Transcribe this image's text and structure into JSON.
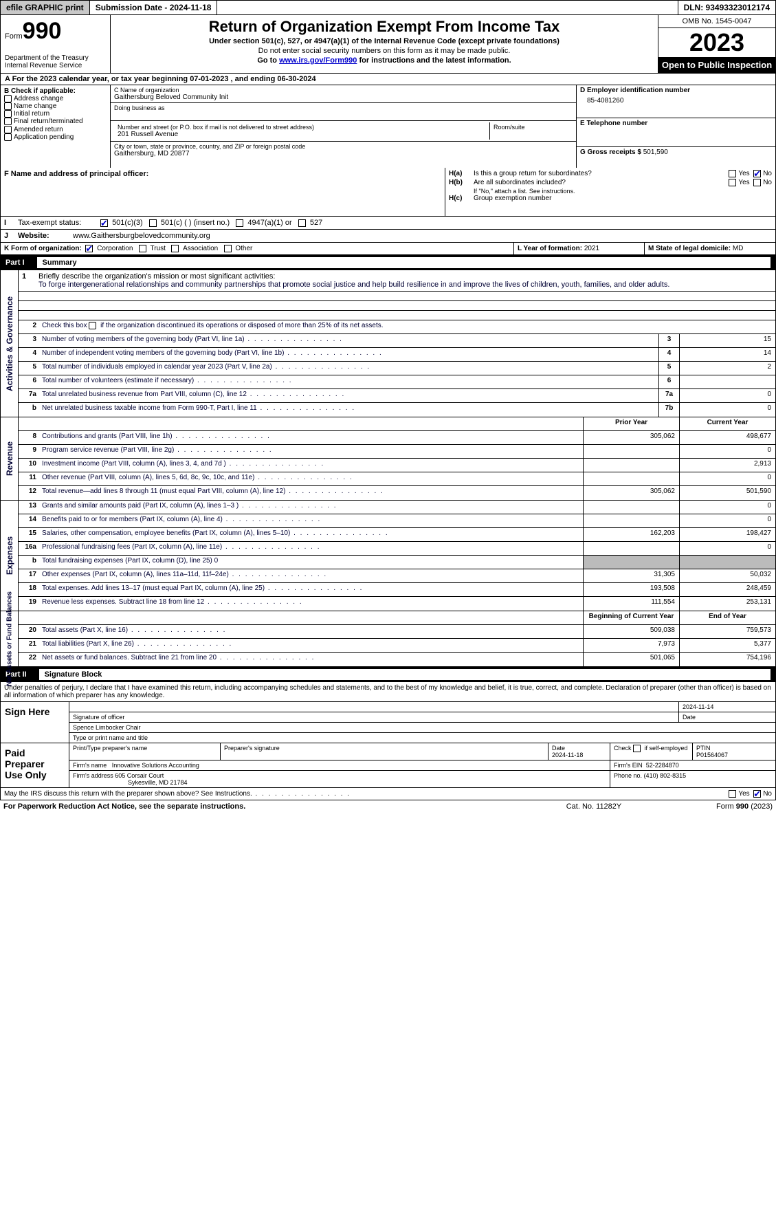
{
  "topbar": {
    "efile": "efile GRAPHIC print",
    "submission": "Submission Date - 2024-11-18",
    "dln": "DLN: 93493323012174"
  },
  "header": {
    "form_word": "Form",
    "form_num": "990",
    "dept": "Department of the Treasury",
    "irs": "Internal Revenue Service",
    "title": "Return of Organization Exempt From Income Tax",
    "sub1": "Under section 501(c), 527, or 4947(a)(1) of the Internal Revenue Code (except private foundations)",
    "sub2": "Do not enter social security numbers on this form as it may be made public.",
    "sub3_a": "Go to ",
    "sub3_link": "www.irs.gov/Form990",
    "sub3_b": " for instructions and the latest information.",
    "omb": "OMB No. 1545-0047",
    "year": "2023",
    "open": "Open to Public Inspection"
  },
  "row_a": "A For the 2023 calendar year, or tax year beginning 07-01-2023    , and ending 06-30-2024",
  "box_b": {
    "title": "B Check if applicable:",
    "items": [
      "Address change",
      "Name change",
      "Initial return",
      "Final return/terminated",
      "Amended return",
      "Application pending"
    ]
  },
  "box_c": {
    "name_lbl": "C Name of organization",
    "name": "Gaithersburg Beloved Community Init",
    "dba_lbl": "Doing business as",
    "dba": "",
    "addr_lbl": "Number and street (or P.O. box if mail is not delivered to street address)",
    "addr": "201 Russell Avenue",
    "room_lbl": "Room/suite",
    "city_lbl": "City or town, state or province, country, and ZIP or foreign postal code",
    "city": "Gaithersburg, MD  20877"
  },
  "box_d": {
    "lbl": "D Employer identification number",
    "val": "85-4081260"
  },
  "box_e": {
    "lbl": "E Telephone number",
    "val": ""
  },
  "box_g": {
    "lbl": "G Gross receipts $",
    "val": "501,590"
  },
  "box_f": {
    "lbl": "F  Name and address of principal officer:",
    "val": ""
  },
  "box_h": {
    "a": "Is this a group return for subordinates?",
    "b": "Are all subordinates included?",
    "b_note": "If \"No,\" attach a list. See instructions.",
    "c": "Group exemption number",
    "yes": "Yes",
    "no": "No"
  },
  "row_i": {
    "lbl": "Tax-exempt status:",
    "opts": [
      "501(c)(3)",
      "501(c) (   ) (insert no.)",
      "4947(a)(1) or",
      "527"
    ]
  },
  "row_j": {
    "lbl": "Website:",
    "val": "www.Gaithersburgbelovedcommunity.org"
  },
  "row_k": {
    "lbl": "K Form of organization:",
    "opts": [
      "Corporation",
      "Trust",
      "Association",
      "Other"
    ]
  },
  "row_l": {
    "lbl": "L Year of formation:",
    "val": "2021"
  },
  "row_m": {
    "lbl": "M State of legal domicile:",
    "val": "MD"
  },
  "part1": {
    "num": "Part I",
    "title": "Summary"
  },
  "mission": {
    "lbl": "Briefly describe the organization's mission or most significant activities:",
    "text": "To forge intergenerational relationships and community partnerships that promote social justice and help build resilience in and improve the lives of children, youth, families, and older adults."
  },
  "line2": "Check this box      if the organization discontinued its operations or disposed of more than 25% of its net assets.",
  "sidelabels": {
    "ag": "Activities & Governance",
    "rev": "Revenue",
    "exp": "Expenses",
    "na": "Net Assets or\nFund Balances"
  },
  "gov": [
    {
      "n": "3",
      "t": "Number of voting members of the governing body (Part VI, line 1a)",
      "b": "3",
      "v": "15"
    },
    {
      "n": "4",
      "t": "Number of independent voting members of the governing body (Part VI, line 1b)",
      "b": "4",
      "v": "14"
    },
    {
      "n": "5",
      "t": "Total number of individuals employed in calendar year 2023 (Part V, line 2a)",
      "b": "5",
      "v": "2"
    },
    {
      "n": "6",
      "t": "Total number of volunteers (estimate if necessary)",
      "b": "6",
      "v": ""
    },
    {
      "n": "7a",
      "t": "Total unrelated business revenue from Part VIII, column (C), line 12",
      "b": "7a",
      "v": "0"
    },
    {
      "n": "b",
      "t": "Net unrelated business taxable income from Form 990-T, Part I, line 11",
      "b": "7b",
      "v": "0"
    }
  ],
  "rev_hdr": {
    "prior": "Prior Year",
    "curr": "Current Year"
  },
  "rev": [
    {
      "n": "8",
      "t": "Contributions and grants (Part VIII, line 1h)",
      "p": "305,062",
      "c": "498,677"
    },
    {
      "n": "9",
      "t": "Program service revenue (Part VIII, line 2g)",
      "p": "",
      "c": "0"
    },
    {
      "n": "10",
      "t": "Investment income (Part VIII, column (A), lines 3, 4, and 7d )",
      "p": "",
      "c": "2,913"
    },
    {
      "n": "11",
      "t": "Other revenue (Part VIII, column (A), lines 5, 6d, 8c, 9c, 10c, and 11e)",
      "p": "",
      "c": "0"
    },
    {
      "n": "12",
      "t": "Total revenue—add lines 8 through 11 (must equal Part VIII, column (A), line 12)",
      "p": "305,062",
      "c": "501,590"
    }
  ],
  "exp": [
    {
      "n": "13",
      "t": "Grants and similar amounts paid (Part IX, column (A), lines 1–3 )",
      "p": "",
      "c": "0"
    },
    {
      "n": "14",
      "t": "Benefits paid to or for members (Part IX, column (A), line 4)",
      "p": "",
      "c": "0"
    },
    {
      "n": "15",
      "t": "Salaries, other compensation, employee benefits (Part IX, column (A), lines 5–10)",
      "p": "162,203",
      "c": "198,427"
    },
    {
      "n": "16a",
      "t": "Professional fundraising fees (Part IX, column (A), line 11e)",
      "p": "",
      "c": "0"
    },
    {
      "n": "b",
      "t": "Total fundraising expenses (Part IX, column (D), line 25) 0",
      "grey": true
    },
    {
      "n": "17",
      "t": "Other expenses (Part IX, column (A), lines 11a–11d, 11f–24e)",
      "p": "31,305",
      "c": "50,032"
    },
    {
      "n": "18",
      "t": "Total expenses. Add lines 13–17 (must equal Part IX, column (A), line 25)",
      "p": "193,508",
      "c": "248,459"
    },
    {
      "n": "19",
      "t": "Revenue less expenses. Subtract line 18 from line 12",
      "p": "111,554",
      "c": "253,131"
    }
  ],
  "na_hdr": {
    "beg": "Beginning of Current Year",
    "end": "End of Year"
  },
  "na": [
    {
      "n": "20",
      "t": "Total assets (Part X, line 16)",
      "p": "509,038",
      "c": "759,573"
    },
    {
      "n": "21",
      "t": "Total liabilities (Part X, line 26)",
      "p": "7,973",
      "c": "5,377"
    },
    {
      "n": "22",
      "t": "Net assets or fund balances. Subtract line 21 from line 20",
      "p": "501,065",
      "c": "754,196"
    }
  ],
  "part2": {
    "num": "Part II",
    "title": "Signature Block"
  },
  "sig_intro": "Under penalties of perjury, I declare that I have examined this return, including accompanying schedules and statements, and to the best of my knowledge and belief, it is true, correct, and complete. Declaration of preparer (other than officer) is based on all information of which preparer has any knowledge.",
  "sign_here": "Sign Here",
  "sig": {
    "date": "2024-11-14",
    "sig_lbl": "Signature of officer",
    "name": "Spence Limbocker  Chair",
    "name_lbl": "Type or print name and title",
    "date_lbl": "Date"
  },
  "paid": "Paid Preparer Use Only",
  "prep": {
    "print_lbl": "Print/Type preparer's name",
    "sig_lbl": "Preparer's signature",
    "date_lbl": "Date",
    "date": "2024-11-18",
    "check_lbl": "Check          if self-employed",
    "ptin_lbl": "PTIN",
    "ptin": "P01564067",
    "firm_lbl": "Firm's name",
    "firm": "Innovative Solutions Accounting",
    "ein_lbl": "Firm's EIN",
    "ein": "52-2284870",
    "addr_lbl": "Firm's address",
    "addr1": "605 Corsair Court",
    "addr2": "Sykesville, MD  21784",
    "phone_lbl": "Phone no.",
    "phone": "(410) 802-8315"
  },
  "discuss": "May the IRS discuss this return with the preparer shown above? See Instructions.",
  "footer": {
    "pra": "For Paperwork Reduction Act Notice, see the separate instructions.",
    "cat": "Cat. No. 11282Y",
    "form": "Form 990 (2023)"
  }
}
